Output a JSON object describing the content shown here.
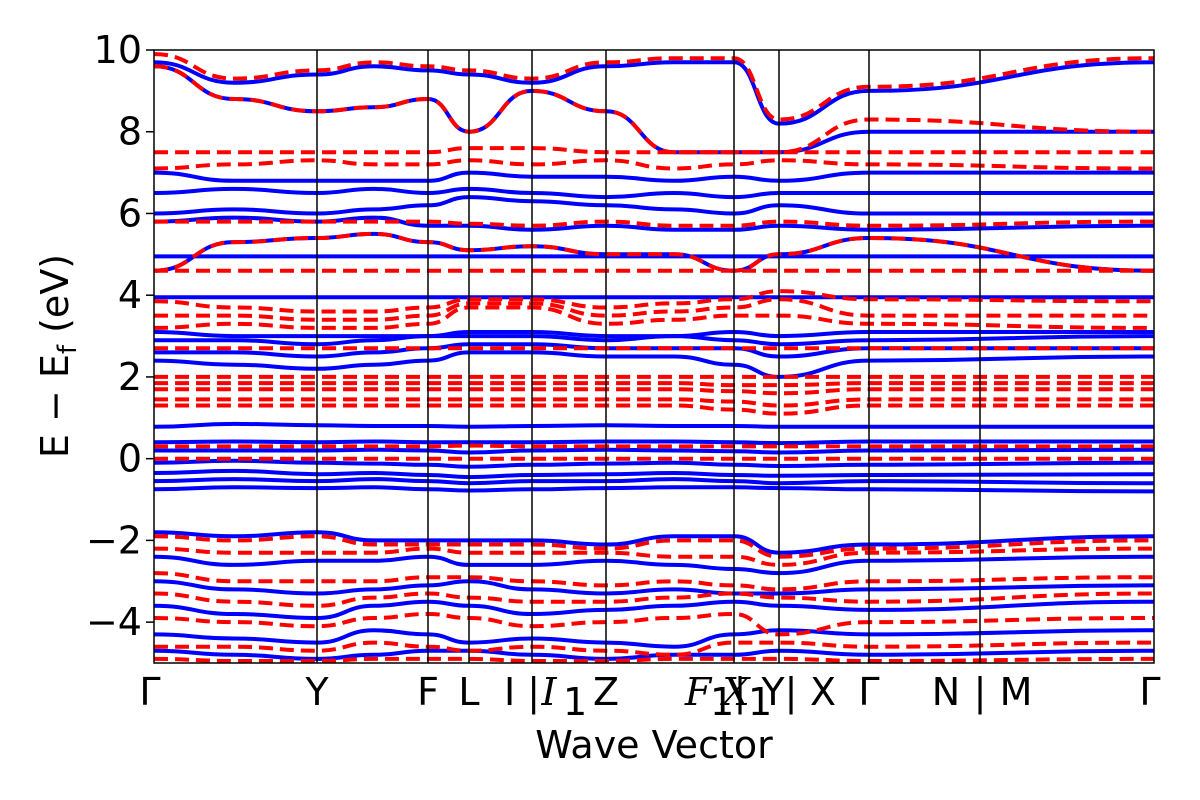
{
  "chart_data": {
    "type": "line",
    "title": "",
    "xlabel": "Wave Vector",
    "ylabel": "E − E_f (eV)",
    "ylabel_parts": {
      "main": "E − E",
      "sub": "f",
      "unit": " (eV)"
    },
    "ylim": [
      -5,
      10
    ],
    "yticks": [
      -4,
      -2,
      0,
      2,
      4,
      6,
      8,
      10
    ],
    "ytick_labels": [
      "−4",
      "−2",
      "0",
      "2",
      "4",
      "6",
      "8",
      "10"
    ],
    "x_range": [
      0,
      1
    ],
    "kpoints": [
      {
        "label": "Γ",
        "x": 0.0
      },
      {
        "label": "Y",
        "x": 0.163
      },
      {
        "label": "F",
        "x": 0.274
      },
      {
        "label": "L",
        "x": 0.315
      },
      {
        "label": "I | ",
        "x": 0.378,
        "sub_base": "I",
        "sub_index": "1"
      },
      {
        "label": "Z",
        "x": 0.452
      },
      {
        "label": "",
        "x": 0.58,
        "sub_base": "F",
        "sub_index": "1",
        "italic": true
      },
      {
        "label": "|Y",
        "x": 0.625,
        "sub_base": "X",
        "sub_index": "1",
        "italic": true
      },
      {
        "label": "| X",
        "x": 0.625
      },
      {
        "label": "Γ",
        "x": 0.715
      },
      {
        "label": "N | M",
        "x": 0.826
      },
      {
        "label": "Γ",
        "x": 1.0
      }
    ],
    "kpoint_label_text": [
      "Γ",
      "Y",
      "F",
      "L",
      "I |",
      "I",
      "1",
      "Z",
      "F",
      "1",
      "X",
      "1",
      "|",
      "Y",
      "|",
      "X",
      "Γ",
      "N",
      "|",
      "M",
      "Γ"
    ],
    "kpoint_lines_x": [
      0.163,
      0.274,
      0.315,
      0.378,
      0.452,
      0.58,
      0.625,
      0.715,
      0.826
    ],
    "series": [
      {
        "style": "solid",
        "color": "#0000ff",
        "bands": [
          [
            -0.75,
            -0.7,
            -0.72,
            -0.7,
            -0.75,
            -0.78,
            -0.75,
            -0.72,
            -0.7,
            -0.7,
            -0.72,
            -0.75,
            -0.8
          ],
          [
            -0.55,
            -0.5,
            -0.55,
            -0.5,
            -0.55,
            -0.6,
            -0.55,
            -0.55,
            -0.5,
            -0.55,
            -0.6,
            -0.55,
            -0.6
          ],
          [
            -0.35,
            -0.3,
            -0.38,
            -0.35,
            -0.4,
            -0.45,
            -0.4,
            -0.38,
            -0.35,
            -0.4,
            -0.42,
            -0.4,
            -0.38
          ],
          [
            -0.1,
            -0.05,
            -0.1,
            -0.12,
            -0.15,
            -0.2,
            -0.15,
            -0.12,
            -0.1,
            -0.15,
            -0.18,
            -0.15,
            -0.1
          ],
          [
            0.2,
            0.2,
            0.2,
            0.22,
            0.2,
            0.15,
            0.2,
            0.22,
            0.2,
            0.18,
            0.15,
            0.2,
            0.22
          ],
          [
            0.4,
            0.42,
            0.4,
            0.42,
            0.4,
            0.4,
            0.4,
            0.42,
            0.42,
            0.4,
            0.38,
            0.42,
            0.42
          ],
          [
            0.78,
            0.85,
            0.82,
            0.8,
            0.8,
            0.78,
            0.8,
            0.82,
            0.8,
            0.8,
            0.78,
            0.78,
            0.78
          ],
          [
            2.4,
            2.3,
            2.2,
            2.3,
            2.4,
            2.6,
            2.6,
            2.5,
            2.5,
            2.3,
            2.0,
            2.4,
            2.5
          ],
          [
            2.6,
            2.6,
            2.5,
            2.6,
            2.7,
            2.8,
            2.8,
            2.7,
            2.7,
            2.7,
            2.5,
            2.7,
            2.7
          ],
          [
            2.9,
            2.9,
            2.8,
            2.9,
            3.0,
            3.0,
            3.0,
            2.9,
            3.0,
            2.9,
            2.8,
            2.9,
            3.0
          ],
          [
            3.1,
            3.0,
            3.0,
            3.0,
            3.0,
            3.1,
            3.1,
            3.0,
            3.0,
            3.1,
            3.0,
            3.1,
            3.1
          ],
          [
            3.95,
            3.95,
            3.95,
            3.95,
            3.95,
            3.95,
            3.95,
            3.95,
            3.95,
            3.95,
            3.95,
            3.95,
            3.95
          ],
          [
            4.95,
            4.95,
            4.95,
            4.95,
            4.95,
            4.95,
            4.95,
            4.95,
            4.95,
            4.95,
            4.95,
            4.95,
            4.95
          ],
          [
            4.6,
            5.3,
            5.4,
            5.5,
            5.3,
            5.1,
            5.2,
            5.0,
            5.0,
            4.6,
            5.0,
            5.4,
            4.6
          ],
          [
            5.8,
            5.9,
            5.8,
            5.9,
            5.7,
            5.7,
            5.6,
            5.7,
            5.6,
            5.6,
            5.7,
            5.6,
            5.7
          ],
          [
            6.0,
            6.1,
            6.0,
            6.1,
            6.2,
            6.4,
            6.3,
            6.2,
            6.1,
            6.0,
            6.2,
            6.0,
            6.0
          ],
          [
            6.5,
            6.6,
            6.5,
            6.6,
            6.5,
            6.6,
            6.5,
            6.4,
            6.5,
            6.4,
            6.5,
            6.5,
            6.5
          ],
          [
            7.0,
            6.8,
            6.8,
            6.8,
            6.8,
            7.0,
            6.9,
            6.9,
            6.8,
            6.9,
            6.8,
            7.0,
            7.0
          ],
          [
            9.6,
            8.8,
            8.5,
            8.6,
            8.8,
            8.0,
            9.0,
            8.5,
            7.5,
            7.5,
            7.5,
            8.0,
            8.0
          ],
          [
            9.7,
            9.2,
            9.4,
            9.6,
            9.5,
            9.4,
            9.2,
            9.6,
            9.7,
            9.7,
            8.2,
            9.0,
            9.7
          ],
          [
            -1.8,
            -1.9,
            -1.8,
            -2.0,
            -2.0,
            -2.0,
            -2.0,
            -2.1,
            -1.9,
            -1.9,
            -2.3,
            -2.1,
            -1.9
          ],
          [
            -2.4,
            -2.6,
            -2.5,
            -2.5,
            -2.4,
            -2.6,
            -2.6,
            -2.5,
            -2.6,
            -2.7,
            -2.8,
            -2.5,
            -2.4
          ],
          [
            -3.0,
            -3.2,
            -3.3,
            -3.2,
            -3.1,
            -3.0,
            -3.2,
            -3.3,
            -3.2,
            -3.3,
            -3.3,
            -3.2,
            -3.1
          ],
          [
            -3.6,
            -3.8,
            -3.9,
            -3.6,
            -3.5,
            -3.6,
            -3.8,
            -3.7,
            -3.6,
            -3.5,
            -3.6,
            -3.7,
            -3.5
          ],
          [
            -4.3,
            -4.4,
            -4.5,
            -4.2,
            -4.3,
            -4.5,
            -4.4,
            -4.5,
            -4.6,
            -4.3,
            -4.2,
            -4.3,
            -4.2
          ],
          [
            -4.7,
            -4.8,
            -4.9,
            -4.8,
            -4.7,
            -4.7,
            -4.8,
            -4.9,
            -4.8,
            -4.8,
            -4.7,
            -4.8,
            -4.7
          ]
        ]
      },
      {
        "style": "dashed",
        "color": "#ff0000",
        "bands": [
          [
            0.0,
            0.0,
            0.0,
            0.0,
            0.0,
            0.0,
            0.0,
            0.0,
            0.0,
            0.0,
            0.0,
            0.0,
            0.0
          ],
          [
            0.3,
            0.3,
            0.3,
            0.3,
            0.3,
            0.32,
            0.3,
            0.3,
            0.3,
            0.3,
            0.3,
            0.3,
            0.3
          ],
          [
            1.3,
            1.3,
            1.3,
            1.3,
            1.3,
            1.3,
            1.3,
            1.3,
            1.3,
            1.2,
            1.1,
            1.3,
            1.3
          ],
          [
            1.45,
            1.45,
            1.45,
            1.45,
            1.45,
            1.45,
            1.45,
            1.45,
            1.45,
            1.4,
            1.3,
            1.45,
            1.45
          ],
          [
            1.7,
            1.7,
            1.7,
            1.7,
            1.7,
            1.7,
            1.7,
            1.7,
            1.7,
            1.65,
            1.6,
            1.7,
            1.7
          ],
          [
            1.85,
            1.85,
            1.85,
            1.85,
            1.85,
            1.85,
            1.85,
            1.85,
            1.85,
            1.8,
            1.8,
            1.85,
            1.85
          ],
          [
            2.0,
            2.0,
            2.0,
            2.0,
            2.0,
            2.0,
            2.0,
            2.0,
            2.0,
            2.0,
            2.0,
            2.0,
            2.0
          ],
          [
            2.7,
            2.7,
            2.7,
            2.7,
            2.7,
            2.7,
            2.7,
            2.7,
            2.7,
            2.7,
            2.7,
            2.7,
            2.7
          ],
          [
            3.2,
            3.3,
            3.2,
            3.2,
            3.3,
            3.7,
            3.7,
            3.3,
            3.4,
            3.5,
            3.5,
            3.3,
            3.2
          ],
          [
            3.5,
            3.5,
            3.4,
            3.4,
            3.5,
            3.8,
            3.8,
            3.5,
            3.6,
            3.7,
            3.9,
            3.5,
            3.5
          ],
          [
            3.85,
            3.7,
            3.6,
            3.6,
            3.7,
            3.9,
            3.9,
            3.7,
            3.8,
            3.9,
            4.1,
            3.9,
            3.85
          ],
          [
            4.6,
            4.6,
            4.6,
            4.6,
            4.6,
            4.6,
            4.6,
            4.6,
            4.6,
            4.6,
            4.6,
            4.6,
            4.6
          ],
          [
            4.6,
            5.3,
            5.4,
            5.5,
            5.3,
            5.1,
            5.2,
            5.0,
            5.0,
            4.6,
            5.0,
            5.4,
            4.6
          ],
          [
            5.8,
            5.8,
            5.8,
            5.8,
            5.8,
            5.75,
            5.7,
            5.8,
            5.7,
            5.7,
            5.8,
            5.7,
            5.8
          ],
          [
            7.1,
            7.2,
            7.3,
            7.2,
            7.2,
            7.3,
            7.2,
            7.3,
            7.1,
            7.2,
            7.3,
            7.2,
            7.1
          ],
          [
            7.5,
            7.5,
            7.5,
            7.5,
            7.5,
            7.6,
            7.6,
            7.5,
            7.5,
            7.5,
            7.5,
            7.5,
            7.5
          ],
          [
            9.6,
            8.8,
            8.5,
            8.6,
            8.8,
            8.0,
            9.0,
            8.5,
            7.5,
            7.5,
            7.5,
            8.3,
            8.0
          ],
          [
            9.9,
            9.3,
            9.5,
            9.7,
            9.6,
            9.5,
            9.3,
            9.7,
            9.8,
            9.8,
            8.3,
            9.1,
            9.8
          ],
          [
            -1.9,
            -2.0,
            -1.9,
            -2.1,
            -2.1,
            -2.1,
            -2.1,
            -2.2,
            -2.0,
            -2.0,
            -2.4,
            -2.2,
            -2.0
          ],
          [
            -2.2,
            -2.3,
            -2.3,
            -2.3,
            -2.2,
            -2.3,
            -2.3,
            -2.3,
            -2.4,
            -2.4,
            -2.6,
            -2.3,
            -2.2
          ],
          [
            -2.8,
            -3.0,
            -3.0,
            -3.0,
            -2.9,
            -2.9,
            -3.0,
            -3.1,
            -3.0,
            -3.1,
            -3.2,
            -3.0,
            -2.9
          ],
          [
            -3.3,
            -3.5,
            -3.6,
            -3.4,
            -3.3,
            -3.4,
            -3.5,
            -3.5,
            -3.4,
            -3.3,
            -3.4,
            -3.5,
            -3.3
          ],
          [
            -3.9,
            -4.0,
            -4.1,
            -3.9,
            -3.8,
            -3.9,
            -4.1,
            -4.0,
            -3.9,
            -3.8,
            -4.3,
            -4.0,
            -3.9
          ],
          [
            -4.6,
            -4.6,
            -4.7,
            -4.5,
            -4.6,
            -4.7,
            -4.6,
            -4.7,
            -4.8,
            -4.5,
            -4.5,
            -4.6,
            -4.5
          ],
          [
            -4.9,
            -4.95,
            -4.95,
            -4.9,
            -4.9,
            -4.9,
            -4.95,
            -4.95,
            -4.9,
            -4.9,
            -4.9,
            -4.95,
            -4.9
          ]
        ]
      }
    ],
    "band_sample_x": [
      0.0,
      0.08,
      0.163,
      0.22,
      0.274,
      0.315,
      0.378,
      0.452,
      0.52,
      0.58,
      0.625,
      0.715,
      1.0
    ],
    "grid": false
  }
}
